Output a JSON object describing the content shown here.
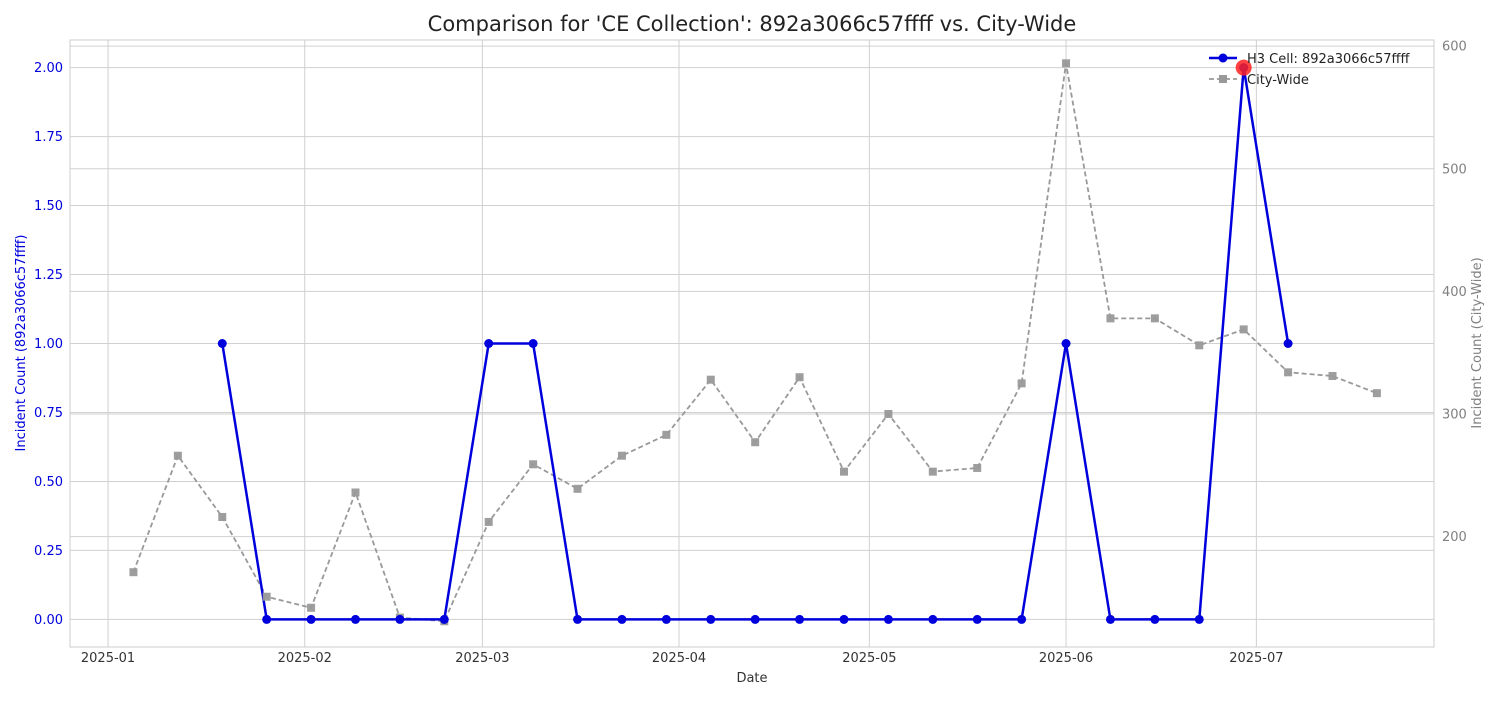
{
  "chart_data": {
    "type": "line",
    "title": "Comparison for 'CE Collection': 892a3066c57ffff vs. City-Wide",
    "xlabel": "Date",
    "ylabel_left": "Incident Count (892a3066c57ffff)",
    "ylabel_right": "Incident Count (City-Wide)",
    "x_ticks": [
      "2025-01",
      "2025-02",
      "2025-03",
      "2025-04",
      "2025-05",
      "2025-06",
      "2025-07"
    ],
    "y_left_ticks": [
      "0.00",
      "0.25",
      "0.50",
      "0.75",
      "1.00",
      "1.25",
      "1.50",
      "1.75",
      "2.00"
    ],
    "y_right_ticks": [
      "200",
      "300",
      "400",
      "500",
      "600"
    ],
    "ylim_left": [
      -0.1,
      2.1
    ],
    "ylim_right": [
      110,
      605
    ],
    "xlim": [
      "2024-12-26",
      "2025-07-29"
    ],
    "grid": true,
    "legend": "top-right",
    "series": [
      {
        "name": "H3 Cell: 892a3066c57ffff",
        "axis": "left",
        "color": "#0000dd",
        "style": "solid",
        "marker": "circle",
        "x": [
          "2025-01-19",
          "2025-01-26",
          "2025-02-02",
          "2025-02-09",
          "2025-02-16",
          "2025-02-23",
          "2025-03-02",
          "2025-03-09",
          "2025-03-16",
          "2025-03-23",
          "2025-03-30",
          "2025-04-06",
          "2025-04-13",
          "2025-04-20",
          "2025-04-27",
          "2025-05-04",
          "2025-05-11",
          "2025-05-18",
          "2025-05-25",
          "2025-06-01",
          "2025-06-08",
          "2025-06-15",
          "2025-06-22",
          "2025-06-29",
          "2025-07-06"
        ],
        "values": [
          1,
          0,
          0,
          0,
          0,
          0,
          1,
          1,
          0,
          0,
          0,
          0,
          0,
          0,
          0,
          0,
          0,
          0,
          0,
          1,
          0,
          0,
          0,
          2,
          1
        ]
      },
      {
        "name": "City-Wide",
        "axis": "right",
        "color": "#999999",
        "style": "dashed",
        "marker": "square",
        "x": [
          "2025-01-05",
          "2025-01-12",
          "2025-01-19",
          "2025-01-26",
          "2025-02-02",
          "2025-02-09",
          "2025-02-16",
          "2025-02-23",
          "2025-03-02",
          "2025-03-09",
          "2025-03-16",
          "2025-03-23",
          "2025-03-30",
          "2025-04-06",
          "2025-04-13",
          "2025-04-20",
          "2025-04-27",
          "2025-05-04",
          "2025-05-11",
          "2025-05-18",
          "2025-05-25",
          "2025-06-01",
          "2025-06-08",
          "2025-06-15",
          "2025-06-22",
          "2025-06-29",
          "2025-07-06",
          "2025-07-13",
          "2025-07-20"
        ],
        "values": [
          171,
          266,
          216,
          151,
          142,
          236,
          134,
          131,
          212,
          259,
          239,
          266,
          283,
          328,
          277,
          330,
          253,
          300,
          253,
          256,
          325,
          586,
          378,
          378,
          356,
          369,
          334,
          331,
          317
        ]
      }
    ],
    "highlight": {
      "series": "H3 Cell: 892a3066c57ffff",
      "x": "2025-06-29",
      "value": 2,
      "color": "#ff2020"
    }
  }
}
